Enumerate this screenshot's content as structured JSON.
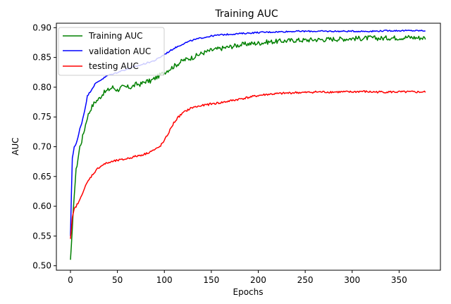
{
  "chart_data": {
    "type": "line",
    "title": "Training AUC",
    "xlabel": "Epochs",
    "ylabel": "AUC",
    "xlim": [
      -15,
      394
    ],
    "ylim": [
      0.4925,
      0.9075
    ],
    "xticks": [
      0,
      50,
      100,
      150,
      200,
      250,
      300,
      350
    ],
    "yticks": [
      0.5,
      0.55,
      0.6,
      0.65,
      0.7,
      0.75,
      0.8,
      0.85,
      0.9
    ],
    "xtick_labels": [
      "0",
      "50",
      "100",
      "150",
      "200",
      "250",
      "300",
      "350"
    ],
    "ytick_labels": [
      "0.50",
      "0.55",
      "0.60",
      "0.65",
      "0.70",
      "0.75",
      "0.80",
      "0.85",
      "0.90"
    ],
    "grid": false,
    "legend_position": "top-left",
    "series": [
      {
        "name": "Training AUC",
        "color": "#008000",
        "x": [
          0,
          2,
          4,
          6,
          8,
          10,
          12,
          15,
          18,
          22,
          26,
          30,
          35,
          40,
          45,
          50,
          55,
          60,
          65,
          70,
          75,
          80,
          85,
          90,
          95,
          100,
          105,
          110,
          115,
          120,
          130,
          140,
          150,
          160,
          170,
          180,
          190,
          200,
          210,
          220,
          230,
          240,
          250,
          260,
          270,
          280,
          290,
          300,
          310,
          320,
          330,
          340,
          350,
          360,
          370,
          378
        ],
        "y": [
          0.51,
          0.56,
          0.62,
          0.66,
          0.68,
          0.7,
          0.71,
          0.73,
          0.75,
          0.765,
          0.775,
          0.78,
          0.79,
          0.795,
          0.8,
          0.795,
          0.8,
          0.8,
          0.8,
          0.805,
          0.805,
          0.81,
          0.81,
          0.815,
          0.82,
          0.825,
          0.83,
          0.835,
          0.84,
          0.845,
          0.85,
          0.857,
          0.862,
          0.865,
          0.868,
          0.871,
          0.873,
          0.874,
          0.876,
          0.877,
          0.878,
          0.879,
          0.879,
          0.88,
          0.88,
          0.881,
          0.881,
          0.882,
          0.882,
          0.883,
          0.882,
          0.883,
          0.883,
          0.884,
          0.883,
          0.883
        ]
      },
      {
        "name": "validation AUC",
        "color": "#0000ff",
        "x": [
          0,
          1,
          2,
          4,
          6,
          8,
          10,
          12,
          15,
          18,
          22,
          26,
          30,
          35,
          40,
          45,
          50,
          55,
          60,
          70,
          80,
          90,
          100,
          110,
          120,
          130,
          140,
          150,
          160,
          180,
          200,
          220,
          240,
          260,
          280,
          300,
          320,
          340,
          360,
          378
        ],
        "y": [
          0.55,
          0.62,
          0.68,
          0.7,
          0.705,
          0.715,
          0.73,
          0.74,
          0.76,
          0.785,
          0.795,
          0.805,
          0.81,
          0.815,
          0.82,
          0.822,
          0.825,
          0.828,
          0.83,
          0.835,
          0.84,
          0.845,
          0.855,
          0.865,
          0.873,
          0.879,
          0.883,
          0.886,
          0.888,
          0.89,
          0.892,
          0.893,
          0.894,
          0.894,
          0.894,
          0.894,
          0.894,
          0.895,
          0.895,
          0.895
        ]
      },
      {
        "name": "testing AUC",
        "color": "#ff0000",
        "x": [
          0,
          2,
          4,
          6,
          8,
          10,
          12,
          15,
          18,
          22,
          26,
          30,
          35,
          40,
          45,
          50,
          55,
          60,
          65,
          70,
          75,
          80,
          85,
          90,
          95,
          100,
          105,
          110,
          115,
          120,
          125,
          130,
          140,
          150,
          160,
          170,
          180,
          190,
          200,
          210,
          220,
          230,
          240,
          250,
          260,
          270,
          280,
          290,
          300,
          310,
          320,
          330,
          340,
          350,
          360,
          370,
          378
        ],
        "y": [
          0.545,
          0.58,
          0.595,
          0.6,
          0.605,
          0.61,
          0.62,
          0.63,
          0.64,
          0.65,
          0.658,
          0.665,
          0.67,
          0.673,
          0.675,
          0.677,
          0.678,
          0.68,
          0.682,
          0.684,
          0.686,
          0.688,
          0.692,
          0.695,
          0.7,
          0.71,
          0.725,
          0.74,
          0.75,
          0.757,
          0.762,
          0.766,
          0.769,
          0.772,
          0.774,
          0.777,
          0.78,
          0.783,
          0.786,
          0.788,
          0.789,
          0.79,
          0.791,
          0.791,
          0.792,
          0.792,
          0.792,
          0.792,
          0.792,
          0.793,
          0.792,
          0.792,
          0.792,
          0.792,
          0.792,
          0.792,
          0.792
        ]
      }
    ]
  }
}
